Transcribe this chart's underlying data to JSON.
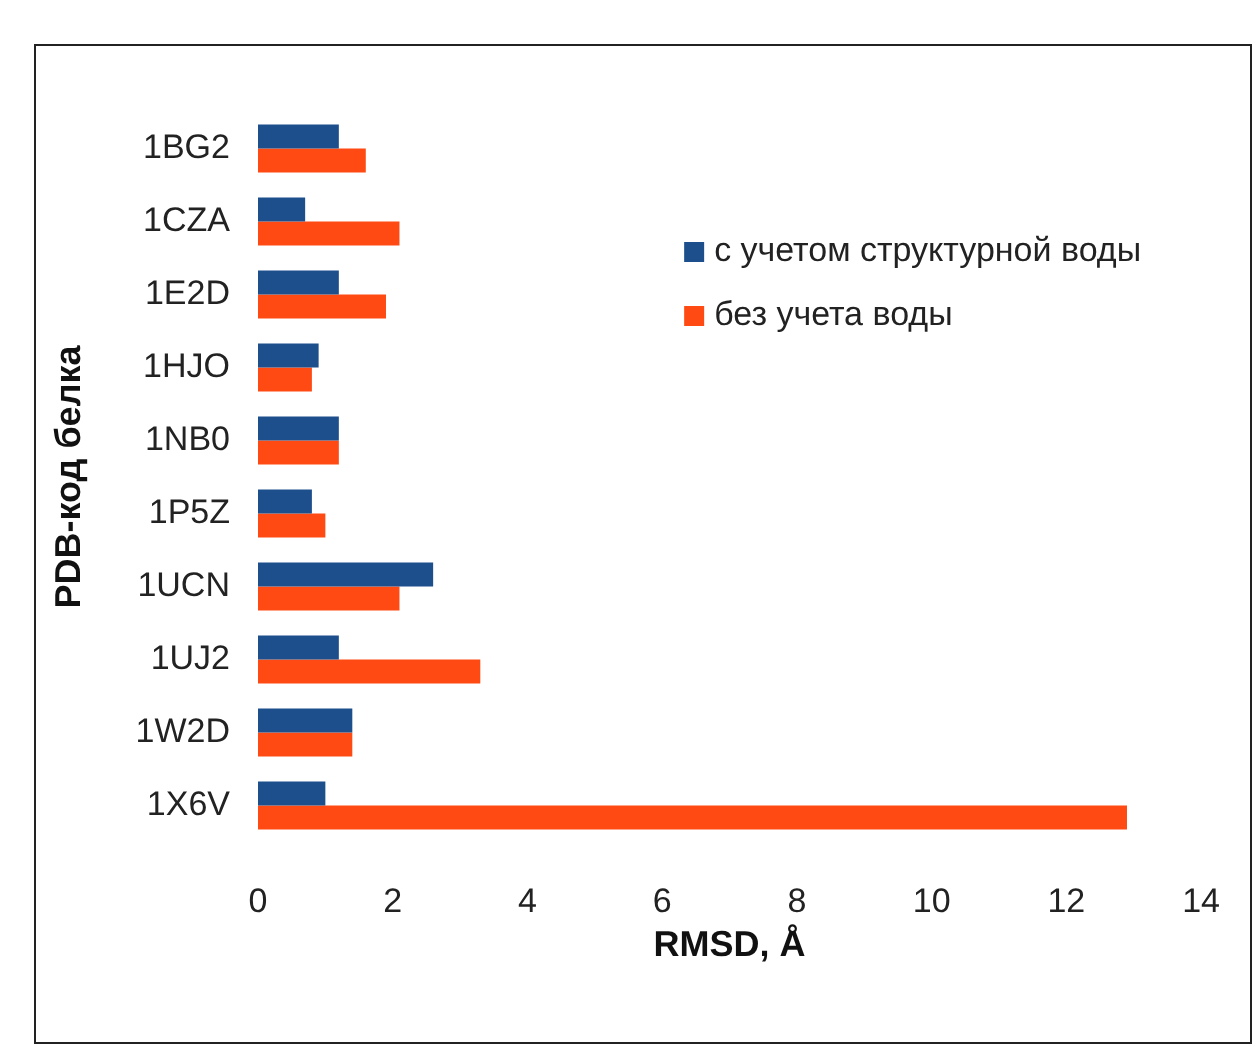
{
  "chart_data": {
    "type": "bar",
    "orientation": "horizontal",
    "xlabel": "RMSD, Å",
    "ylabel": "PDB-код белка",
    "categories": [
      "1BG2",
      "1CZA",
      "1E2D",
      "1HJO",
      "1NB0",
      "1P5Z",
      "1UCN",
      "1UJ2",
      "1W2D",
      "1X6V"
    ],
    "series": [
      {
        "name": "с учетом структурной воды",
        "color": "#1c4f8c",
        "values": [
          1.2,
          0.7,
          1.2,
          0.9,
          1.2,
          0.8,
          2.6,
          1.2,
          1.4,
          1.0
        ]
      },
      {
        "name": "без учета воды",
        "color": "#ff4a14",
        "values": [
          1.6,
          2.1,
          1.9,
          0.8,
          1.2,
          1.0,
          2.1,
          3.3,
          1.4,
          12.9
        ]
      }
    ],
    "xlim": [
      0,
      14
    ],
    "xticks": [
      0,
      2,
      4,
      6,
      8,
      10,
      12,
      14
    ],
    "legend": "top right"
  }
}
